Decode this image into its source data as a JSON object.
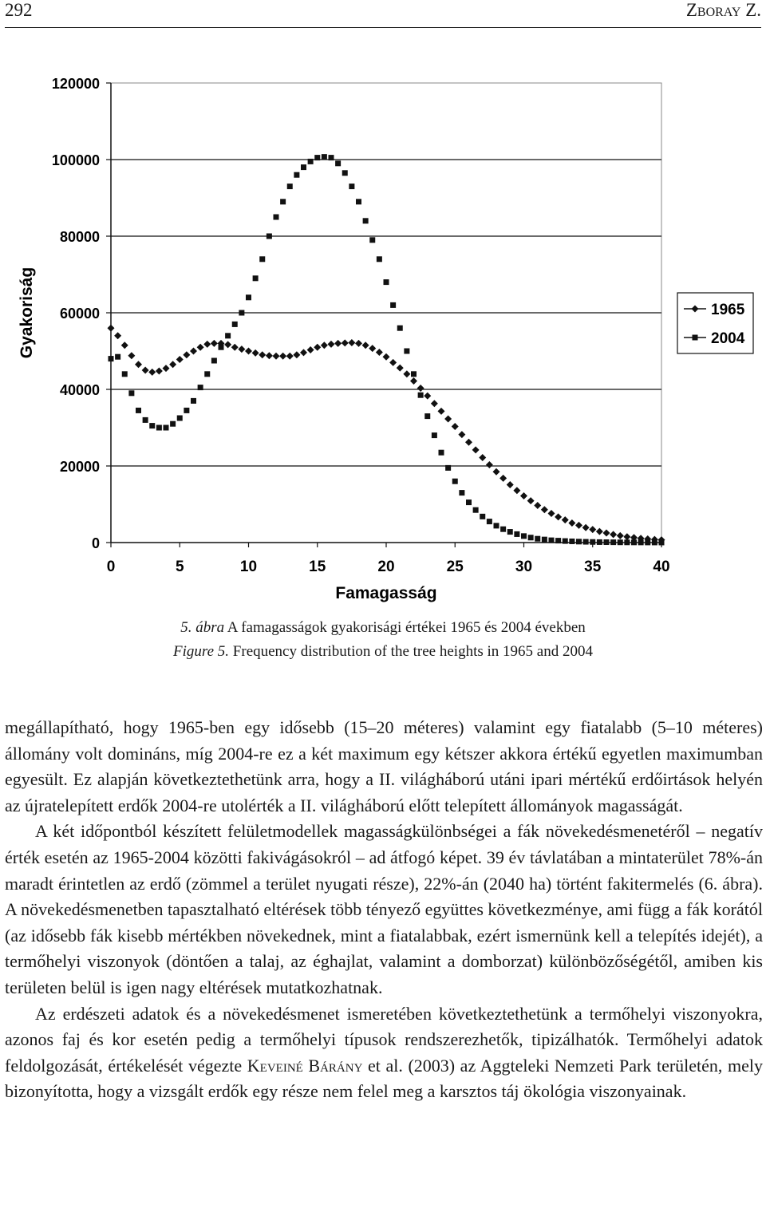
{
  "header": {
    "page_number": "292",
    "author": "Zboray Z."
  },
  "chart_data": {
    "type": "scatter",
    "xlabel": "Famagasság",
    "ylabel": "Gyakoriság",
    "xlim": [
      0,
      40
    ],
    "ylim": [
      0,
      120000
    ],
    "xticks": [
      "0",
      "5",
      "10",
      "15",
      "20",
      "25",
      "30",
      "35",
      "40"
    ],
    "yticks": [
      "0",
      "20000",
      "40000",
      "60000",
      "80000",
      "100000",
      "120000"
    ],
    "grid": "horizontal",
    "legend": "right",
    "series": [
      {
        "name": "1965",
        "marker": "diamond",
        "x": [
          0,
          0.5,
          1,
          1.5,
          2,
          2.5,
          3,
          3.5,
          4,
          4.5,
          5,
          5.5,
          6,
          6.5,
          7,
          7.5,
          8,
          8.5,
          9,
          9.5,
          10,
          10.5,
          11,
          11.5,
          12,
          12.5,
          13,
          13.5,
          14,
          14.5,
          15,
          15.5,
          16,
          16.5,
          17,
          17.5,
          18,
          18.5,
          19,
          19.5,
          20,
          20.5,
          21,
          21.5,
          22,
          22.5,
          23,
          23.5,
          24,
          24.5,
          25,
          25.5,
          26,
          26.5,
          27,
          27.5,
          28,
          28.5,
          29,
          29.5,
          30,
          30.5,
          31,
          31.5,
          32,
          32.5,
          33,
          33.5,
          34,
          34.5,
          35,
          35.5,
          36,
          36.5,
          37,
          37.5,
          38,
          38.5,
          39,
          39.5,
          40
        ],
        "values": [
          56000,
          54000,
          51500,
          48800,
          46500,
          45000,
          44500,
          44800,
          45500,
          46500,
          47800,
          49000,
          50000,
          51000,
          51800,
          52000,
          52000,
          51700,
          51000,
          50500,
          50000,
          49500,
          49000,
          48800,
          48700,
          48700,
          48700,
          49000,
          49600,
          50300,
          51000,
          51500,
          51800,
          52000,
          52100,
          52200,
          52000,
          51500,
          50700,
          49700,
          48500,
          47000,
          45600,
          44000,
          42200,
          40300,
          38300,
          36300,
          34300,
          32300,
          30300,
          28200,
          26200,
          24200,
          22200,
          20300,
          18500,
          16800,
          15100,
          13600,
          12200,
          10900,
          9700,
          8600,
          7600,
          6700,
          5900,
          5100,
          4500,
          3900,
          3400,
          2900,
          2500,
          2100,
          1800,
          1500,
          1300,
          1100,
          950,
          800,
          700
        ]
      },
      {
        "name": "2004",
        "marker": "square",
        "x": [
          0,
          0.5,
          1,
          1.5,
          2,
          2.5,
          3,
          3.5,
          4,
          4.5,
          5,
          5.5,
          6,
          6.5,
          7,
          7.5,
          8,
          8.5,
          9,
          9.5,
          10,
          10.5,
          11,
          11.5,
          12,
          12.5,
          13,
          13.5,
          14,
          14.5,
          15,
          15.5,
          16,
          16.5,
          17,
          17.5,
          18,
          18.5,
          19,
          19.5,
          20,
          20.5,
          21,
          21.5,
          22,
          22.5,
          23,
          23.5,
          24,
          24.5,
          25,
          25.5,
          26,
          26.5,
          27,
          27.5,
          28,
          28.5,
          29,
          29.5,
          30,
          30.5,
          31,
          31.5,
          32,
          32.5,
          33,
          33.5,
          34,
          34.5,
          35,
          35.5,
          36,
          36.5,
          37,
          37.5,
          38,
          38.5,
          39,
          39.5,
          40
        ],
        "values": [
          48000,
          48500,
          44000,
          39000,
          34500,
          32000,
          30500,
          30000,
          30000,
          31000,
          32500,
          34500,
          37000,
          40500,
          44000,
          47500,
          51000,
          54000,
          57000,
          60000,
          64000,
          69000,
          74000,
          80000,
          85000,
          89000,
          93000,
          96000,
          98000,
          99500,
          100500,
          100700,
          100500,
          99000,
          96500,
          93000,
          89000,
          84000,
          79000,
          74000,
          68000,
          62000,
          56000,
          50000,
          44000,
          38500,
          33000,
          28000,
          23500,
          19500,
          16000,
          13000,
          10500,
          8500,
          6800,
          5500,
          4400,
          3500,
          2800,
          2200,
          1700,
          1300,
          1000,
          800,
          600,
          500,
          400,
          320,
          250,
          200,
          160,
          120,
          100,
          80,
          60,
          50,
          40,
          30,
          25,
          20,
          15
        ]
      }
    ]
  },
  "caption": {
    "hu_label": "5. ábra",
    "hu_text": " A famagasságok gyakorisági értékei 1965 és 2004 években",
    "en_label": "Figure 5.",
    "en_text": " Frequency distribution of the tree heights in 1965 and 2004"
  },
  "body": {
    "p1": "megállapítható, hogy 1965-ben egy idősebb (15–20 méteres) valamint egy fiatalabb (5–10 méteres) állomány volt domináns, míg 2004-re ez a két maximum egy kétszer akkora értékű egyetlen maximumban egyesült. Ez alapján következtethetünk arra, hogy a II. világháború utáni ipari mértékű erdőirtások helyén az újratelepített erdők 2004-re utolérték a II. világháború előtt telepített állományok magasságát.",
    "p2": "A két időpontból készített felületmodellek magasságkülönbségei a fák növekedésmenetéről – negatív érték esetén az 1965-2004 közötti fakivágásokról – ad átfogó képet. 39 év távlatában a mintaterület 78%-án maradt érintetlen az erdő (zömmel a terület nyugati része), 22%-án (2040 ha) történt fakitermelés (6. ábra). A növekedésmenetben tapasztalható eltérések több tényező együttes következménye, ami függ a fák korától (az idősebb fák kisebb mértékben növekednek, mint a fiatalabbak, ezért ismernünk kell a telepítés idejét), a termőhelyi viszonyok (döntően a talaj, az éghajlat, valamint a domborzat) különbözőségétől, amiben kis területen belül is igen nagy eltérések mutatkozhatnak.",
    "p3a": "Az erdészeti adatok és a növekedésmenet ismeretében következtethetünk a termőhelyi viszonyokra, azonos faj és kor esetén pedig a termőhelyi típusok rendszerezhetők, tipizálhatók. Termőhelyi adatok feldolgozását, értékelését végezte ",
    "p3_cite": "Keveiné Bárány",
    "p3b": " et al. (2003) az Aggteleki Nemzeti Park területén, mely bizonyította, hogy a vizsgált erdők egy része nem felel meg a karsztos táj ökológia viszonyainak."
  }
}
